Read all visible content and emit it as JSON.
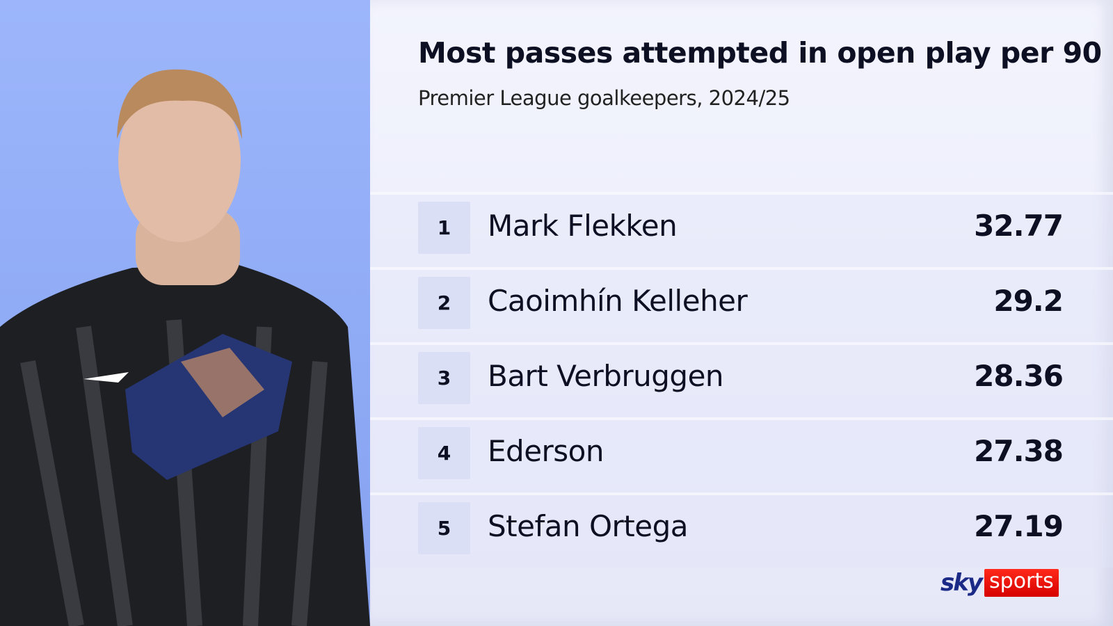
{
  "header": {
    "title": "Most passes attempted in open play per 90",
    "subtitle": "Premier League goalkeepers, 2024/25"
  },
  "rows": [
    {
      "rank": "1",
      "name": "Mark Flekken",
      "value": "32.77"
    },
    {
      "rank": "2",
      "name": "Caoimhín Kelleher",
      "value": "29.2"
    },
    {
      "rank": "3",
      "name": "Bart Verbruggen",
      "value": "28.36"
    },
    {
      "rank": "4",
      "name": "Ederson",
      "value": "27.38"
    },
    {
      "rank": "5",
      "name": "Stefan Ortega",
      "value": "27.19"
    }
  ],
  "logo": {
    "sky": "sky",
    "sports": "sports"
  },
  "colors": {
    "photo_bg": "#9db6fb",
    "rank_box": "#dadff6",
    "logo_red": "#e60a00",
    "logo_blue": "#1b2a86"
  }
}
